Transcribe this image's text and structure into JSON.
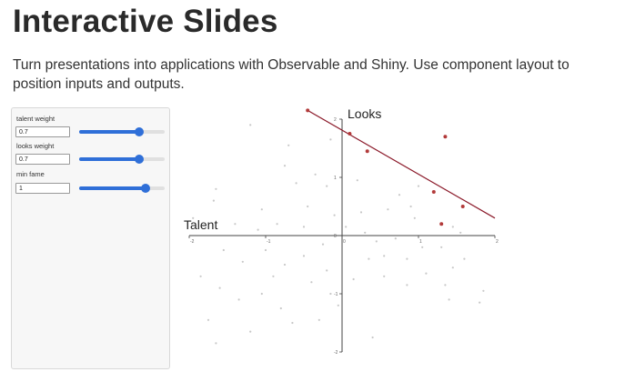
{
  "header": {
    "title": "Interactive Slides",
    "subtitle": "Turn presentations into applications with Observable and Shiny. Use component layout to position inputs and outputs."
  },
  "controls": [
    {
      "label": "talent weight",
      "value": "0.7",
      "fraction": 0.7
    },
    {
      "label": "looks weight",
      "value": "0.7",
      "fraction": 0.7
    },
    {
      "label": "min fame",
      "value": "1",
      "fraction": 0.78
    }
  ],
  "colors": {
    "accent": "#2f6fd8",
    "selected_point": "#b23a3a",
    "other_point": "#c8c8c8",
    "threshold_line": "#8b1a2a"
  },
  "chart_data": {
    "type": "scatter",
    "xlabel": "Talent",
    "ylabel": "Looks",
    "xlim": [
      -2,
      2
    ],
    "ylim": [
      -2,
      2
    ],
    "x_ticks": [
      "-2",
      "-1",
      "0",
      "1",
      "2"
    ],
    "y_ticks": [
      "2",
      "1",
      "0",
      "-1",
      "-2"
    ],
    "threshold_line": {
      "x1": -0.45,
      "y1": 2.15,
      "x2": 2.0,
      "y2": 0.3
    },
    "series": [
      {
        "group": "above threshold",
        "points": [
          [
            -0.45,
            2.15
          ],
          [
            0.1,
            1.75
          ],
          [
            0.33,
            1.45
          ],
          [
            1.35,
            1.7
          ],
          [
            1.2,
            0.75
          ],
          [
            1.58,
            0.5
          ],
          [
            1.3,
            0.2
          ]
        ]
      },
      {
        "group": "below threshold",
        "points": [
          [
            -1.2,
            1.9
          ],
          [
            -0.7,
            1.55
          ],
          [
            -0.15,
            1.65
          ],
          [
            -1.65,
            0.8
          ],
          [
            -1.68,
            0.6
          ],
          [
            -0.75,
            1.2
          ],
          [
            -0.6,
            0.9
          ],
          [
            -0.35,
            1.05
          ],
          [
            -0.2,
            0.85
          ],
          [
            -1.05,
            0.45
          ],
          [
            -0.45,
            0.5
          ],
          [
            -0.1,
            0.35
          ],
          [
            0.05,
            0.15
          ],
          [
            0.25,
            0.4
          ],
          [
            0.6,
            0.45
          ],
          [
            0.75,
            0.7
          ],
          [
            0.9,
            0.5
          ],
          [
            0.95,
            0.3
          ],
          [
            0.3,
            0.05
          ],
          [
            0.45,
            -0.1
          ],
          [
            0.7,
            -0.05
          ],
          [
            1.05,
            -0.2
          ],
          [
            0.85,
            -0.4
          ],
          [
            1.45,
            0.15
          ],
          [
            1.55,
            0.05
          ],
          [
            1.3,
            -0.2
          ],
          [
            -0.5,
            0.15
          ],
          [
            -0.85,
            0.2
          ],
          [
            -1.1,
            0.1
          ],
          [
            -1.4,
            0.2
          ],
          [
            -1.55,
            -0.25
          ],
          [
            -1.3,
            -0.45
          ],
          [
            -1.0,
            -0.25
          ],
          [
            -0.75,
            -0.5
          ],
          [
            -0.5,
            -0.35
          ],
          [
            -0.2,
            -0.6
          ],
          [
            -0.4,
            -0.8
          ],
          [
            -0.15,
            -1.0
          ],
          [
            -0.05,
            -1.2
          ],
          [
            0.15,
            -0.75
          ],
          [
            0.35,
            -0.4
          ],
          [
            0.55,
            -0.7
          ],
          [
            0.85,
            -0.85
          ],
          [
            1.1,
            -0.65
          ],
          [
            1.35,
            -0.85
          ],
          [
            1.4,
            -1.1
          ],
          [
            1.45,
            -0.55
          ],
          [
            1.6,
            -0.4
          ],
          [
            1.85,
            -0.95
          ],
          [
            1.8,
            -1.15
          ],
          [
            -1.85,
            -0.7
          ],
          [
            -1.6,
            -0.9
          ],
          [
            -1.35,
            -1.1
          ],
          [
            -1.05,
            -1.0
          ],
          [
            -0.8,
            -1.25
          ],
          [
            -0.65,
            -1.5
          ],
          [
            -1.75,
            -1.45
          ],
          [
            -1.65,
            -1.85
          ],
          [
            -1.2,
            -1.65
          ],
          [
            -0.3,
            -1.45
          ],
          [
            0.4,
            -1.75
          ],
          [
            0.55,
            -0.35
          ],
          [
            -0.9,
            -0.7
          ],
          [
            -0.25,
            -0.15
          ],
          [
            1.0,
            0.85
          ],
          [
            0.2,
            0.95
          ],
          [
            -1.95,
            0.3
          ]
        ]
      }
    ]
  }
}
